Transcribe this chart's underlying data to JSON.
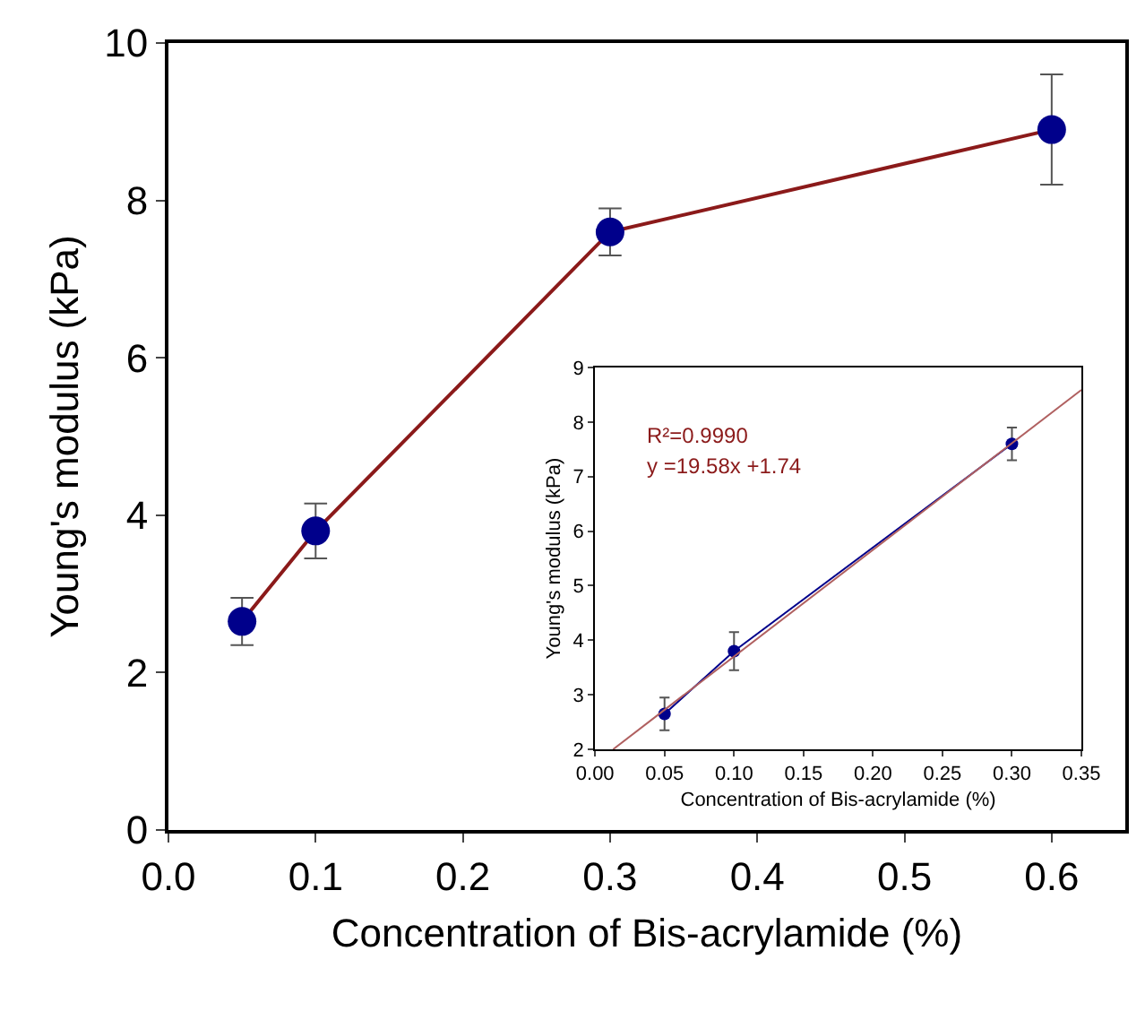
{
  "chart_data": [
    {
      "type": "line",
      "xlabel": "Concentration of Bis-acrylamide (%)",
      "ylabel": "Young's modulus (kPa)",
      "x": [
        0.05,
        0.1,
        0.3,
        0.6
      ],
      "series": [
        {
          "color": "#8b1a1a",
          "colors": [
            "#00008b",
            "#00008b",
            "#00008b",
            "#00008b"
          ],
          "values": [
            2.65,
            3.8,
            7.6,
            8.9
          ],
          "errors": [
            0.3,
            0.35,
            0.3,
            [
              8.2,
              9.6
            ]
          ]
        }
      ],
      "xlim": [
        0,
        0.65
      ],
      "xticks": [
        {
          "value": 0,
          "label": "0.0"
        },
        0.1,
        0.2,
        0.3,
        0.4,
        0.5,
        0.6
      ],
      "ylim": [
        0,
        10
      ],
      "yticks": [
        0,
        2,
        4,
        6,
        8,
        10
      ],
      "marker": "circle"
    },
    {
      "type": "line",
      "xlabel": "Concentration of Bis-acrylamide (%)",
      "ylabel": "Young's modulus (kPa)",
      "series": [
        {
          "x": [
            0.05,
            0.1,
            0.3
          ],
          "color": "#00008b",
          "values": [
            2.65,
            3.8,
            7.6
          ],
          "errors": [
            0.3,
            0.35,
            0.3
          ],
          "marker": "circle"
        },
        {
          "type": "line",
          "x": [
            0.013,
            0.35
          ],
          "color": "#b06060",
          "values": [
            2.0,
            8.59
          ],
          "marker": "none"
        }
      ],
      "xlim": [
        0,
        0.35
      ],
      "xticks": [
        {
          "value": 0,
          "label": "0.00"
        },
        0.05,
        {
          "value": 0.1,
          "label": "0.10"
        },
        0.15,
        {
          "value": 0.2,
          "label": "0.20"
        },
        0.25,
        {
          "value": 0.3,
          "label": "0.30"
        },
        0.35
      ],
      "ylim": [
        2,
        9
      ],
      "yticks": [
        2,
        3,
        4,
        5,
        6,
        7,
        8,
        9
      ],
      "annotations": [
        "R²=0.9990",
        "y =19.58x +1.74"
      ]
    }
  ]
}
